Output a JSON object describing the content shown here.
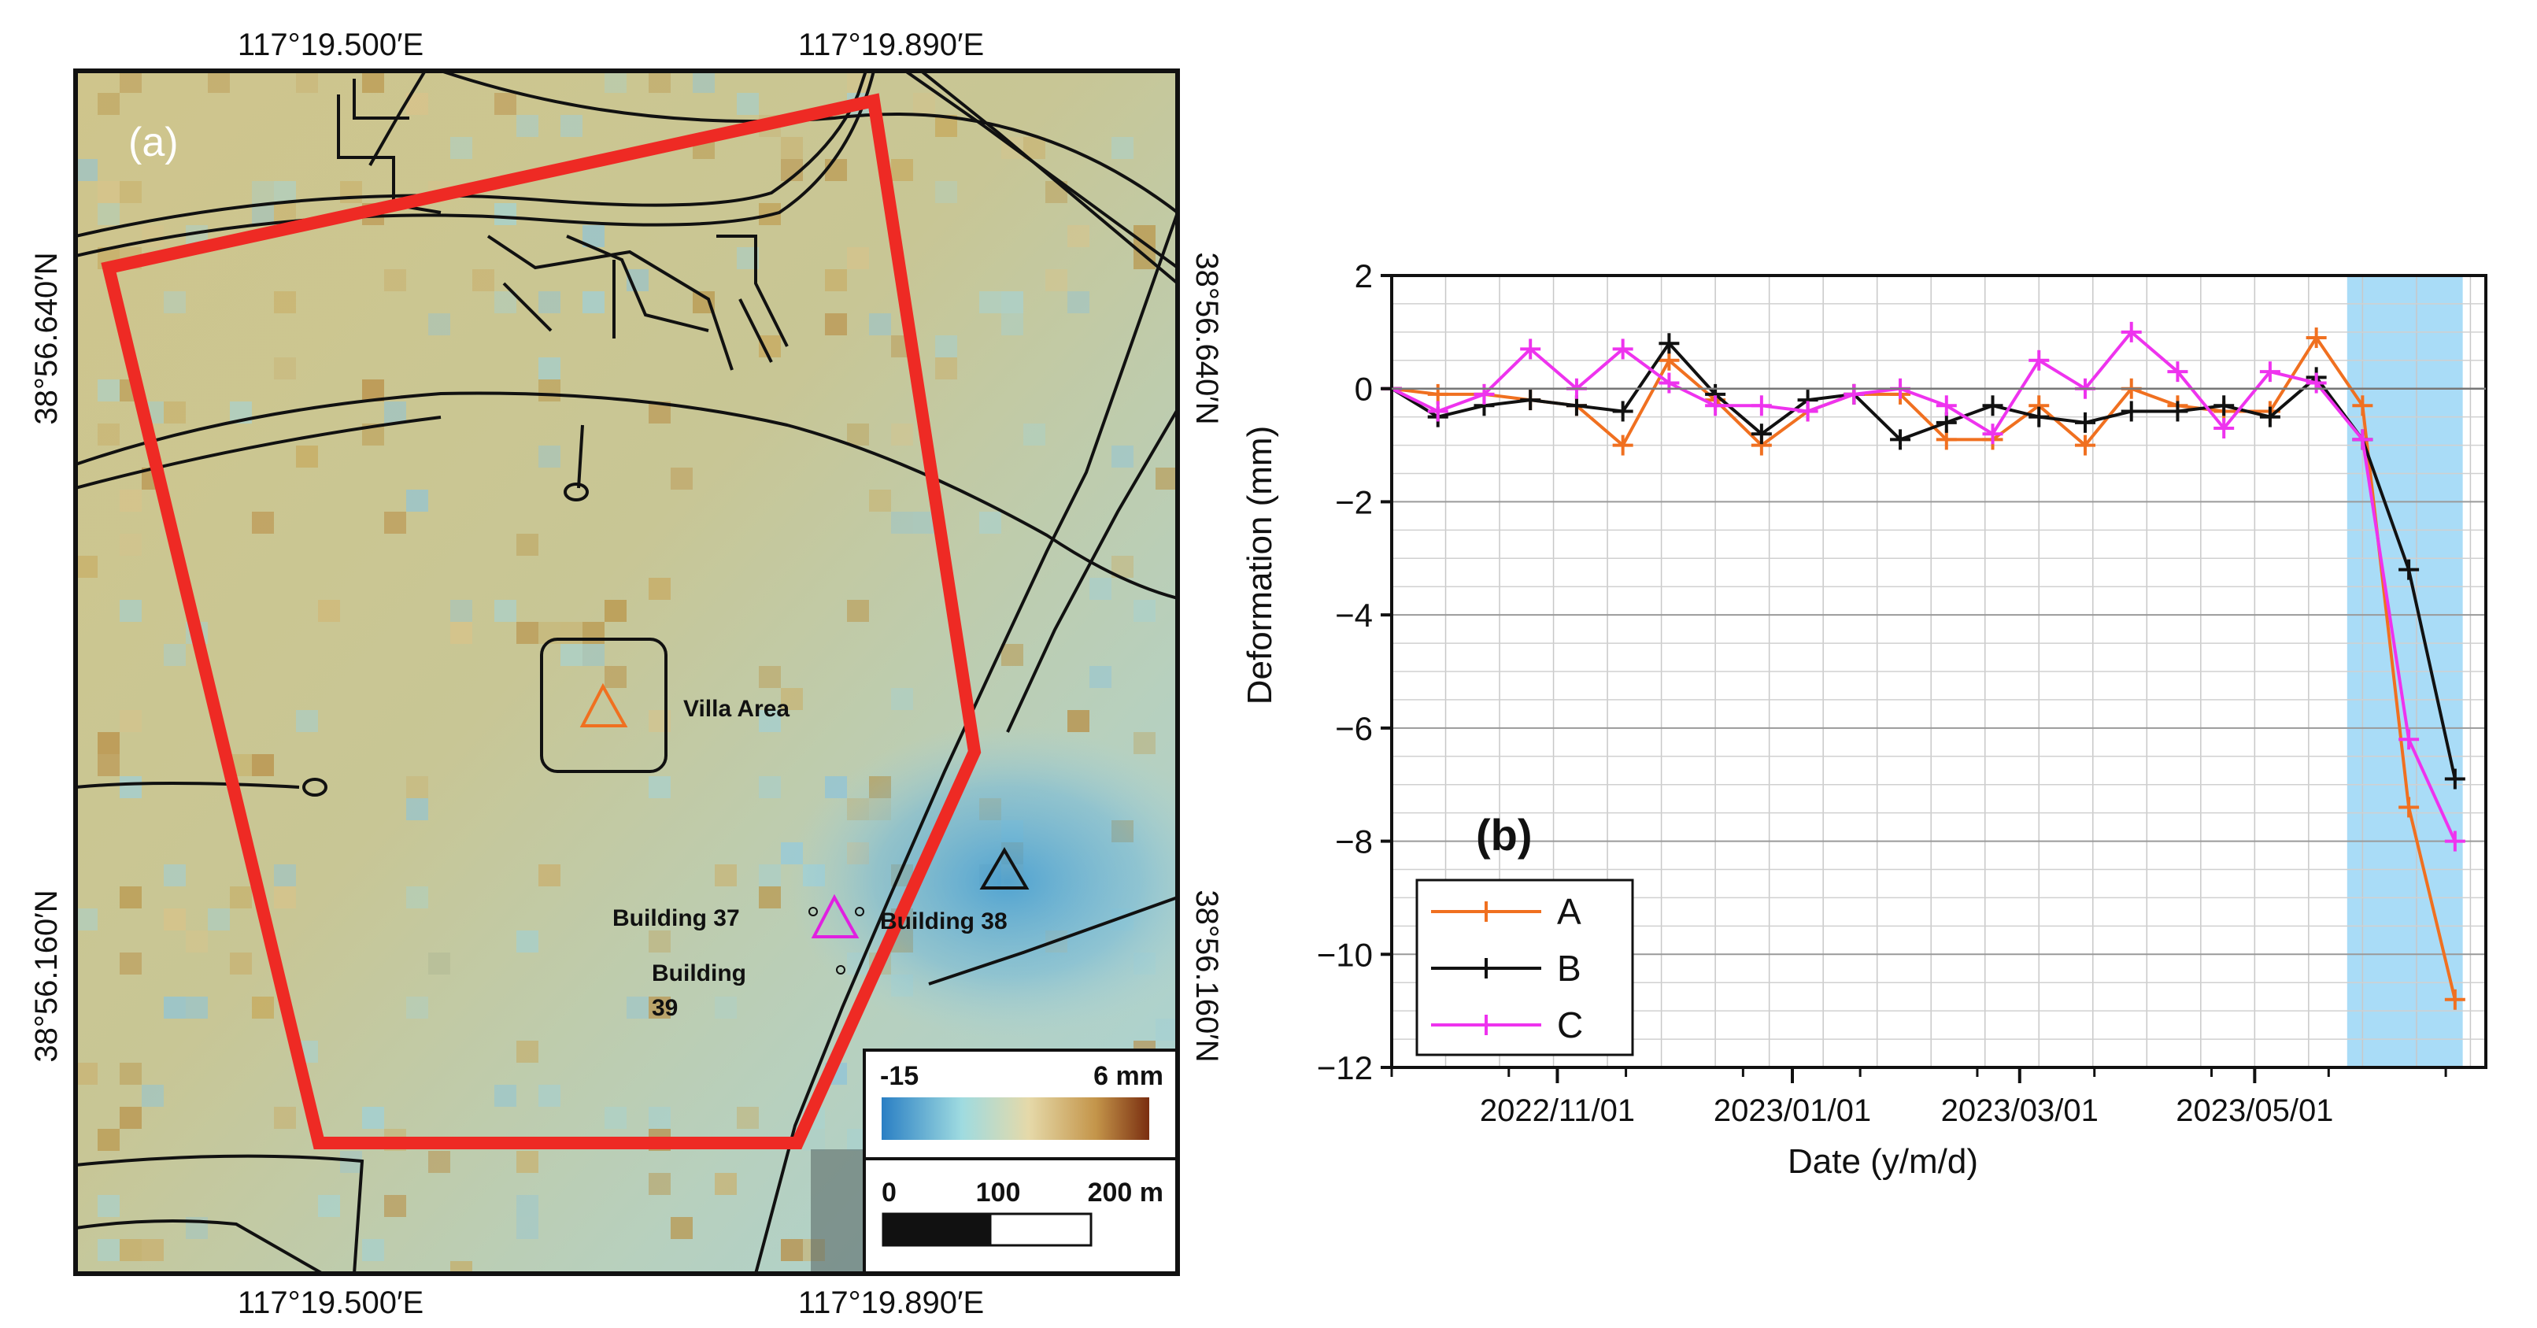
{
  "panel_a": {
    "label": "(a)",
    "top_lon_labels": [
      "117°19.500′E",
      "117°19.890′E"
    ],
    "bottom_lon_labels": [
      "117°19.500′E",
      "117°19.890′E"
    ],
    "left_lat_labels": [
      "38°56.640′N",
      "38°56.160′N"
    ],
    "right_lat_labels": [
      "38°56.640′N",
      "38°56.160′N"
    ],
    "annotations": {
      "villa": "Villa Area",
      "b37": "Building 37",
      "b38": "Building 38",
      "b39_line1": "Building",
      "b39_line2": "39"
    },
    "colorbar": {
      "min_label": "-15",
      "max_label": "6 mm"
    },
    "scalebar": {
      "labels": [
        "0",
        "100",
        "200 m"
      ]
    },
    "colors": {
      "study_area": "#ee2a24",
      "villa_marker": "#f07020",
      "b37_marker": "#e020e0",
      "b38_marker": "#111111"
    }
  },
  "panel_b": {
    "label": "(b)",
    "chart_data": {
      "type": "line",
      "title": "",
      "xlabel": "Date (y/m/d)",
      "ylabel": "Deformation (mm)",
      "ylim": [
        -12,
        2
      ],
      "yticks": [
        "2",
        "0",
        "−2",
        "−4",
        "−6",
        "−8",
        "−10",
        "−12"
      ],
      "xtick_labels": [
        "2022/11/01",
        "2023/01/01",
        "2023/03/01",
        "2023/05/01"
      ],
      "date_range": [
        "2022/09/19",
        "2023/06/30"
      ],
      "highlight_range": [
        "2023/05/25",
        "2023/06/24"
      ],
      "highlight_color": "#a9dcf7",
      "legend": [
        "A",
        "B",
        "C"
      ],
      "dates": [
        "2022/09/19",
        "2022/10/01",
        "2022/10/13",
        "2022/10/25",
        "2022/11/06",
        "2022/11/18",
        "2022/11/30",
        "2022/12/12",
        "2022/12/24",
        "2023/01/05",
        "2023/01/17",
        "2023/01/29",
        "2023/02/10",
        "2023/02/22",
        "2023/03/06",
        "2023/03/18",
        "2023/03/30",
        "2023/04/11",
        "2023/04/23",
        "2023/05/05",
        "2023/05/17",
        "2023/05/29",
        "2023/06/10",
        "2023/06/22"
      ],
      "series": [
        {
          "name": "A",
          "color": "#f07020",
          "values": [
            0,
            -0.1,
            -0.1,
            -0.2,
            -0.3,
            -1.0,
            0.5,
            -0.2,
            -1.0,
            -0.4,
            -0.1,
            -0.1,
            -0.9,
            -0.9,
            -0.3,
            -1.0,
            0.0,
            -0.3,
            -0.4,
            -0.4,
            0.9,
            -0.3,
            -7.4,
            -10.8
          ]
        },
        {
          "name": "B",
          "color": "#111111",
          "values": [
            0,
            -0.5,
            -0.3,
            -0.2,
            -0.3,
            -0.4,
            0.8,
            -0.1,
            -0.8,
            -0.2,
            -0.1,
            -0.9,
            -0.6,
            -0.3,
            -0.5,
            -0.6,
            -0.4,
            -0.4,
            -0.3,
            -0.5,
            0.2,
            -0.9,
            -3.2,
            -6.9
          ]
        },
        {
          "name": "C",
          "color": "#ee33ee",
          "values": [
            0,
            -0.4,
            -0.1,
            0.7,
            0.0,
            0.7,
            0.1,
            -0.3,
            -0.3,
            -0.4,
            -0.1,
            0.0,
            -0.3,
            -0.8,
            0.5,
            0.0,
            1.0,
            0.3,
            -0.7,
            0.3,
            0.1,
            -0.9,
            -6.2,
            -8.0
          ]
        }
      ]
    }
  }
}
